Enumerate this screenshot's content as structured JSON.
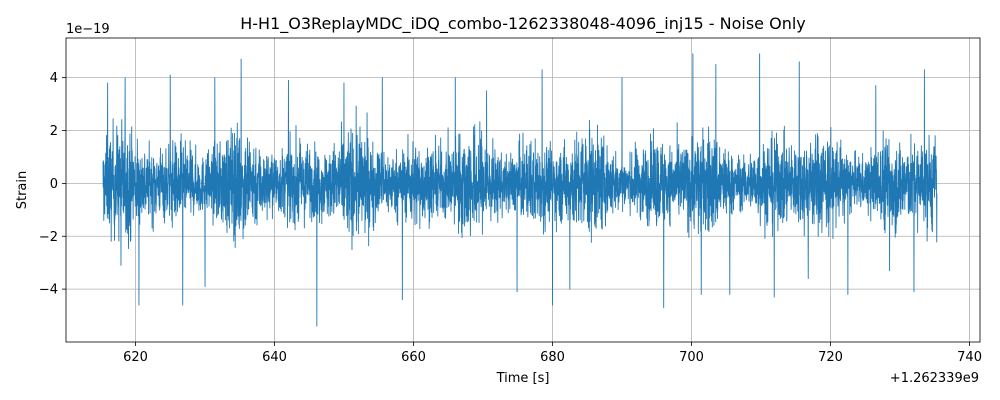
{
  "chart_data": {
    "type": "line",
    "title": "H-H1_O3ReplayMDC_iDQ_combo-1262338048-4096_inj15 - Noise Only",
    "xlabel": "Time [s]",
    "ylabel": "Strain",
    "x_offset_label": "+1.262339e9",
    "y_scale_label": "1e−19",
    "xlim": [
      610,
      741.5
    ],
    "ylim": [
      -6,
      5.5
    ],
    "x_ticks": [
      620,
      640,
      660,
      680,
      700,
      720,
      740
    ],
    "x_tick_labels": [
      "620",
      "640",
      "660",
      "680",
      "700",
      "720",
      "740"
    ],
    "y_ticks": [
      -4,
      -2,
      0,
      2,
      4
    ],
    "y_tick_labels": [
      "−4",
      "−2",
      "0",
      "2",
      "4"
    ],
    "grid": true,
    "series": [
      {
        "color": "#1f77b4",
        "x_start": 615.3,
        "x_end": 735.3,
        "typical_envelope": [
          -2.2,
          2.2
        ],
        "peaks": [
          {
            "x": 616.0,
            "y": 3.8
          },
          {
            "x": 617.9,
            "y": -3.1
          },
          {
            "x": 618.5,
            "y": 4.0
          },
          {
            "x": 620.5,
            "y": -4.6
          },
          {
            "x": 625.0,
            "y": 4.1
          },
          {
            "x": 626.8,
            "y": -4.6
          },
          {
            "x": 630.0,
            "y": -3.9
          },
          {
            "x": 631.4,
            "y": 4.0
          },
          {
            "x": 635.2,
            "y": 4.7
          },
          {
            "x": 642.0,
            "y": 3.9
          },
          {
            "x": 646.1,
            "y": -5.4
          },
          {
            "x": 650.0,
            "y": 3.8
          },
          {
            "x": 655.5,
            "y": 4.0
          },
          {
            "x": 658.4,
            "y": -4.4
          },
          {
            "x": 666.0,
            "y": 4.0
          },
          {
            "x": 670.5,
            "y": 3.5
          },
          {
            "x": 674.9,
            "y": -4.1
          },
          {
            "x": 678.5,
            "y": 4.3
          },
          {
            "x": 680.0,
            "y": -4.6
          },
          {
            "x": 682.5,
            "y": -4.0
          },
          {
            "x": 690.0,
            "y": 4.0
          },
          {
            "x": 696.0,
            "y": -4.7
          },
          {
            "x": 700.2,
            "y": 4.9
          },
          {
            "x": 701.4,
            "y": -4.2
          },
          {
            "x": 703.5,
            "y": 4.5
          },
          {
            "x": 705.5,
            "y": -4.2
          },
          {
            "x": 709.8,
            "y": 4.9
          },
          {
            "x": 711.9,
            "y": -4.3
          },
          {
            "x": 715.5,
            "y": 4.6
          },
          {
            "x": 716.8,
            "y": -3.6
          },
          {
            "x": 722.5,
            "y": -4.2
          },
          {
            "x": 726.5,
            "y": 3.7
          },
          {
            "x": 728.5,
            "y": -3.3
          },
          {
            "x": 732.0,
            "y": -4.1
          },
          {
            "x": 733.5,
            "y": 4.3
          }
        ]
      }
    ]
  }
}
